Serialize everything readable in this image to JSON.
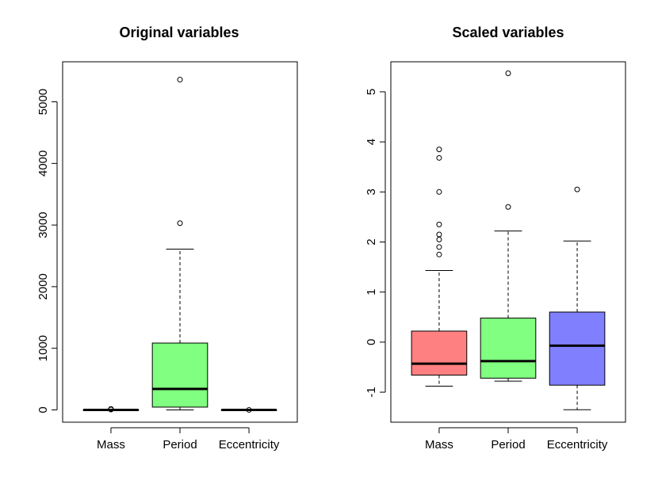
{
  "chart_data": [
    {
      "type": "boxplot",
      "title": "Original variables",
      "xlabel": "",
      "ylabel": "",
      "ylim": [
        -200,
        5650
      ],
      "yticks": [
        0,
        1000,
        2000,
        3000,
        4000,
        5000
      ],
      "categories": [
        "Mass",
        "Period",
        "Eccentricity"
      ],
      "boxes": [
        {
          "name": "Mass",
          "color": "#FF8080",
          "min": 0,
          "q1": 0,
          "median": 0,
          "q3": 0,
          "max": 0,
          "outliers": [
            15,
            5
          ]
        },
        {
          "name": "Period",
          "color": "#80FF80",
          "min": 0,
          "q1": 45,
          "median": 340,
          "q3": 1085,
          "max": 2610,
          "outliers": [
            3030,
            5360
          ]
        },
        {
          "name": "Eccentricity",
          "color": "#8080FF",
          "min": 0,
          "q1": 0,
          "median": 0,
          "q3": 0,
          "max": 0,
          "outliers": [
            0
          ]
        }
      ]
    },
    {
      "type": "boxplot",
      "title": "Scaled variables",
      "xlabel": "",
      "ylabel": "",
      "ylim": [
        -1.6,
        5.6
      ],
      "yticks": [
        -1,
        0,
        1,
        2,
        3,
        4,
        5
      ],
      "categories": [
        "Mass",
        "Period",
        "Eccentricity"
      ],
      "boxes": [
        {
          "name": "Mass",
          "color": "#FF8080",
          "min": -0.88,
          "q1": -0.66,
          "median": -0.43,
          "q3": 0.22,
          "max": 1.43,
          "outliers": [
            1.75,
            1.9,
            2.05,
            2.15,
            2.35,
            3.0,
            3.68,
            3.85
          ]
        },
        {
          "name": "Period",
          "color": "#80FF80",
          "min": -0.78,
          "q1": -0.72,
          "median": -0.38,
          "q3": 0.48,
          "max": 2.22,
          "outliers": [
            2.7,
            5.37
          ]
        },
        {
          "name": "Eccentricity",
          "color": "#8080FF",
          "min": -1.35,
          "q1": -0.86,
          "median": -0.07,
          "q3": 0.6,
          "max": 2.02,
          "outliers": [
            3.05
          ]
        }
      ]
    }
  ]
}
